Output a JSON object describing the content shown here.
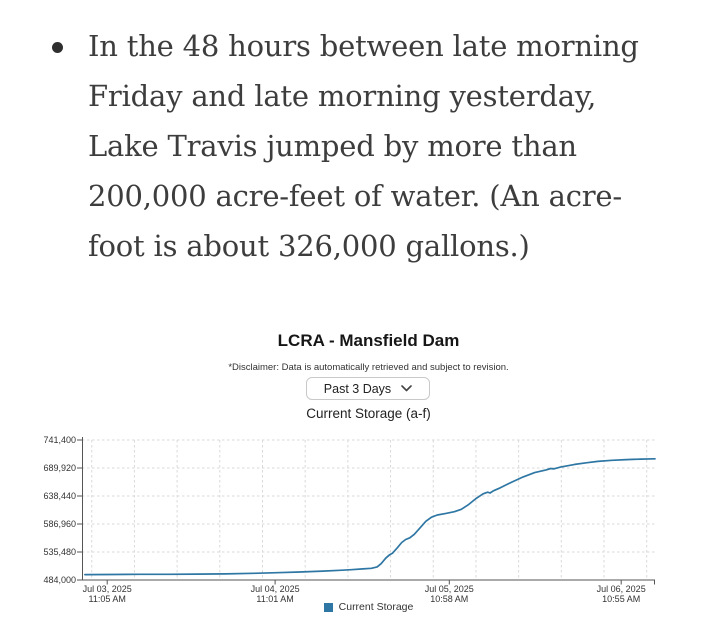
{
  "article": {
    "bullet_text": "In the 48 hours between late morning\nFriday and late morning yesterday,\nLake Travis jumped by more than\n200,000 acre-feet of water. (An acre-\nfoot is about 326,000 gallons.)"
  },
  "widget": {
    "title": "LCRA - Mansfield Dam",
    "disclaimer": "*Disclaimer: Data is automatically retrieved and subject to revision.",
    "range_selector": {
      "value": "Past 3 Days"
    },
    "chart_title": "Current Storage (a-f)"
  },
  "chart_data": {
    "type": "line",
    "title": "Current Storage (a-f)",
    "xlabel": "",
    "ylabel": "",
    "x_unit": "fraction of x-axis span (Jul 03, 2025 11:05 AM to Jul 06, 2025 ~11:00 AM)",
    "y_unit": "acre-feet",
    "ylim": [
      484000,
      741400
    ],
    "y_ticks": [
      {
        "value": 484000,
        "label": "484,000"
      },
      {
        "value": 535480,
        "label": "535,480"
      },
      {
        "value": 586960,
        "label": "586,960"
      },
      {
        "value": 638440,
        "label": "638,440"
      },
      {
        "value": 689920,
        "label": "689,920"
      },
      {
        "value": 741400,
        "label": "741,400"
      }
    ],
    "x_ticks": [
      {
        "t": 0.044,
        "date": "Jul 03, 2025",
        "time": "11:05 AM"
      },
      {
        "t": 0.337,
        "date": "Jul 04, 2025",
        "time": "11:01 AM"
      },
      {
        "t": 0.641,
        "date": "Jul 05, 2025",
        "time": "10:58 AM"
      },
      {
        "t": 0.941,
        "date": "Jul 06, 2025",
        "time": "10:55 AM"
      }
    ],
    "x_grid": {
      "start_t": 0.017,
      "step_t": 0.0745,
      "count": 14
    },
    "grid_style": "dashed",
    "legend_position": "bottom-center",
    "colors": {
      "grid": "#d9d9d9",
      "axis": "#555555"
    },
    "series": [
      {
        "name": "Current Storage",
        "color": "#2e76a3",
        "points": [
          [
            0.005,
            494000
          ],
          [
            0.05,
            494200
          ],
          [
            0.1,
            494400
          ],
          [
            0.15,
            494500
          ],
          [
            0.2,
            494800
          ],
          [
            0.25,
            495300
          ],
          [
            0.3,
            496300
          ],
          [
            0.34,
            497400
          ],
          [
            0.38,
            498800
          ],
          [
            0.42,
            500300
          ],
          [
            0.45,
            501800
          ],
          [
            0.47,
            503000
          ],
          [
            0.49,
            504400
          ],
          [
            0.505,
            505600
          ],
          [
            0.515,
            508000
          ],
          [
            0.522,
            514000
          ],
          [
            0.53,
            524000
          ],
          [
            0.537,
            530500
          ],
          [
            0.542,
            533500
          ],
          [
            0.55,
            543000
          ],
          [
            0.558,
            553000
          ],
          [
            0.565,
            558500
          ],
          [
            0.572,
            561500
          ],
          [
            0.58,
            568000
          ],
          [
            0.59,
            580000
          ],
          [
            0.6,
            592000
          ],
          [
            0.61,
            599500
          ],
          [
            0.62,
            603500
          ],
          [
            0.635,
            606500
          ],
          [
            0.65,
            609500
          ],
          [
            0.662,
            614000
          ],
          [
            0.675,
            623000
          ],
          [
            0.688,
            634000
          ],
          [
            0.7,
            642500
          ],
          [
            0.708,
            645500
          ],
          [
            0.712,
            644000
          ],
          [
            0.718,
            648000
          ],
          [
            0.73,
            653500
          ],
          [
            0.75,
            664000
          ],
          [
            0.77,
            673500
          ],
          [
            0.79,
            681500
          ],
          [
            0.81,
            686500
          ],
          [
            0.818,
            689000
          ],
          [
            0.823,
            688300
          ],
          [
            0.835,
            691500
          ],
          [
            0.86,
            696500
          ],
          [
            0.88,
            699500
          ],
          [
            0.9,
            702000
          ],
          [
            0.925,
            704000
          ],
          [
            0.95,
            705300
          ],
          [
            0.975,
            706200
          ],
          [
            1.0,
            706800
          ]
        ]
      }
    ]
  }
}
